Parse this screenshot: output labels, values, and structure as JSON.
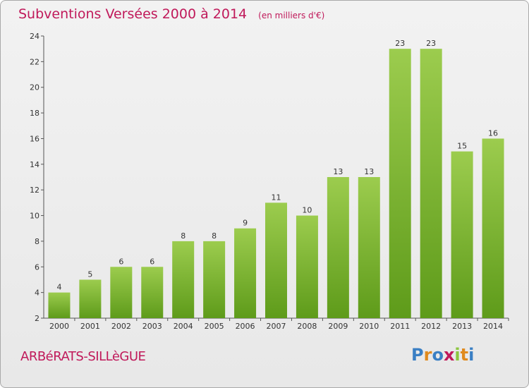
{
  "header": {
    "title": "Subventions Versées 2000 à 2014",
    "unit": "(en milliers d'€)"
  },
  "footer": {
    "location": "ARBéRATS-SILLèGUE",
    "logo": "Proxiti",
    "logo_colors": [
      "#3a7fc4",
      "#e08a1e",
      "#3a7fc4",
      "#c0195a",
      "#8cc63f",
      "#e08a1e",
      "#3a7fc4"
    ]
  },
  "chart_data": {
    "type": "bar",
    "title": "Subventions Versées 2000 à 2014",
    "subtitle": "(en milliers d'€)",
    "categories": [
      "2000",
      "2001",
      "2002",
      "2003",
      "2004",
      "2005",
      "2006",
      "2007",
      "2008",
      "2009",
      "2010",
      "2011",
      "2012",
      "2013",
      "2014"
    ],
    "values": [
      4,
      5,
      6,
      6,
      8,
      8,
      9,
      11,
      10,
      13,
      13,
      23,
      23,
      15,
      16
    ],
    "ylim": [
      2,
      24
    ],
    "yticks": [
      2,
      4,
      6,
      8,
      10,
      12,
      14,
      16,
      18,
      20,
      22,
      24
    ],
    "grid": false,
    "colors": {
      "bar_top": "#9ccc4e",
      "bar_bottom": "#5e9b1a",
      "axis": "#555555"
    }
  }
}
